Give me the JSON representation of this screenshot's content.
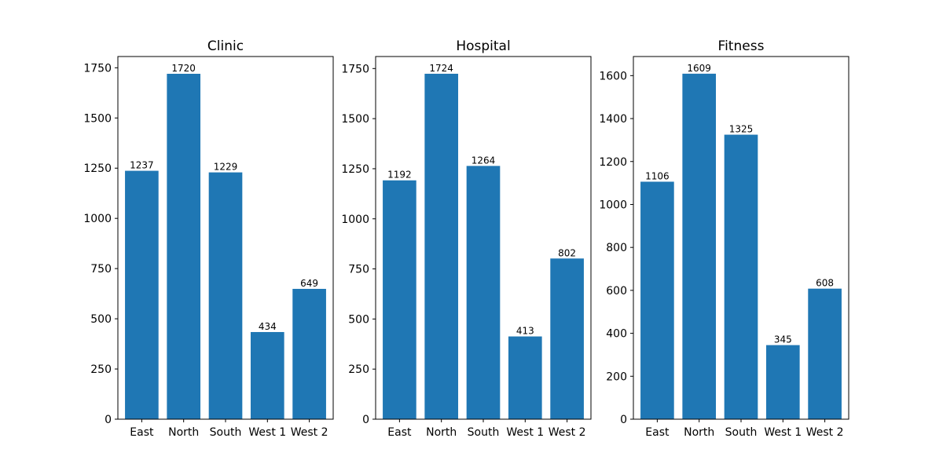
{
  "colors": {
    "bar": "#1f77b4"
  },
  "chart_data": [
    {
      "type": "bar",
      "title": "Clinic",
      "categories": [
        "East",
        "North",
        "South",
        "West 1",
        "West 2"
      ],
      "values": [
        1237,
        1720,
        1229,
        434,
        649
      ],
      "ylim": [
        0,
        1806
      ],
      "yticks": [
        0,
        250,
        500,
        750,
        1000,
        1250,
        1500,
        1750
      ],
      "xlabel": "",
      "ylabel": "",
      "grid": false,
      "legend": "none"
    },
    {
      "type": "bar",
      "title": "Hospital",
      "categories": [
        "East",
        "North",
        "South",
        "West 1",
        "West 2"
      ],
      "values": [
        1192,
        1724,
        1264,
        413,
        802
      ],
      "ylim": [
        0,
        1810
      ],
      "yticks": [
        0,
        250,
        500,
        750,
        1000,
        1250,
        1500,
        1750
      ],
      "xlabel": "",
      "ylabel": "",
      "grid": false,
      "legend": "none"
    },
    {
      "type": "bar",
      "title": "Fitness",
      "categories": [
        "East",
        "North",
        "South",
        "West 1",
        "West 2"
      ],
      "values": [
        1106,
        1609,
        1325,
        345,
        608
      ],
      "ylim": [
        0,
        1689
      ],
      "yticks": [
        0,
        200,
        400,
        600,
        800,
        1000,
        1200,
        1400,
        1600
      ],
      "xlabel": "",
      "ylabel": "",
      "grid": false,
      "legend": "none"
    }
  ]
}
